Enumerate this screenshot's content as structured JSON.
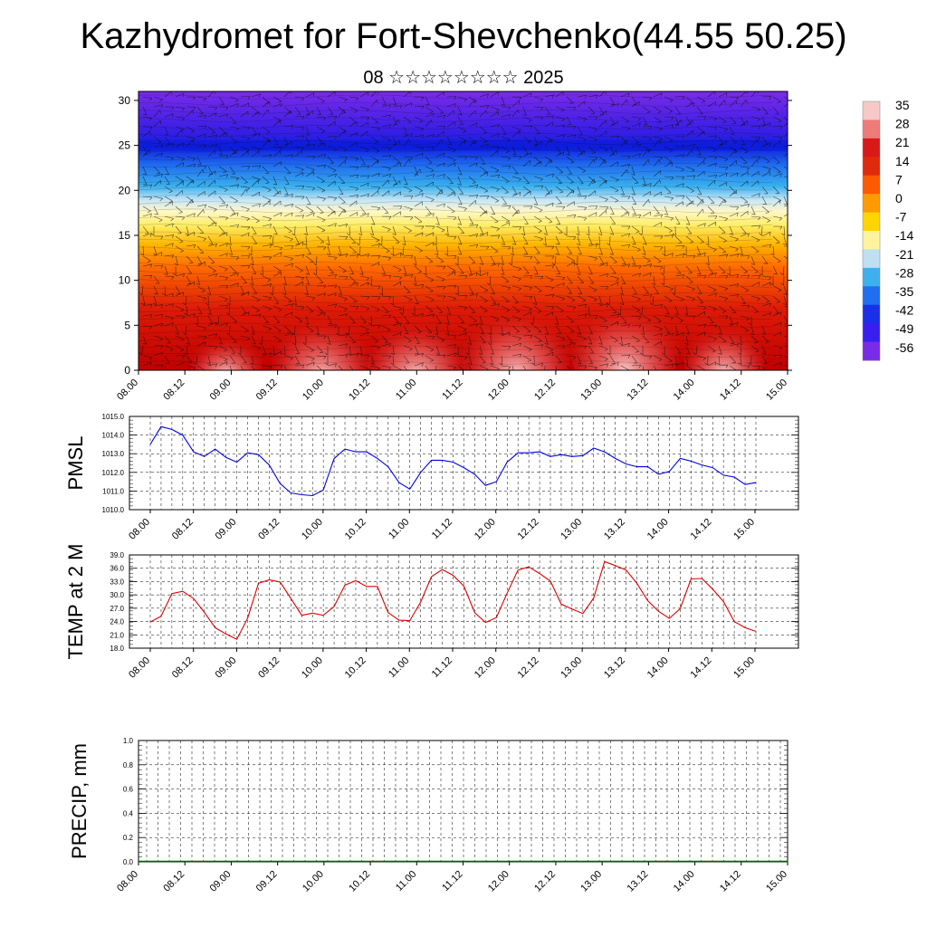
{
  "title": "Kazhydromet for Fort-Shevchenko(44.55 50.25)",
  "subtitle": "08 ☆☆☆☆☆☆☆☆ 2025",
  "time_labels": [
    "08.00",
    "08.12",
    "09.00",
    "09.12",
    "10.00",
    "10.12",
    "11.00",
    "11.12",
    "12.00",
    "12.12",
    "13.00",
    "13.12",
    "14.00",
    "14.12",
    "15.00"
  ],
  "colorbar": {
    "labels": [
      "35",
      "28",
      "21",
      "14",
      "7",
      "0",
      "-7",
      "-14",
      "-21",
      "-28",
      "-35",
      "-42",
      "-49",
      "-56"
    ],
    "colors": [
      "#f6c8c8",
      "#ee7a7a",
      "#d91818",
      "#e02a0c",
      "#ff5a00",
      "#ff9a00",
      "#ffd400",
      "#fff3a0",
      "#bfe0f0",
      "#3fb0ee",
      "#1f6ff0",
      "#1a2fe8",
      "#3a1ef0",
      "#7a2be8"
    ]
  },
  "chart_data": [
    {
      "type": "heatmap",
      "title": "",
      "xlabel": "",
      "ylabel": "",
      "ylim": [
        0,
        31
      ],
      "yticks": [
        "0",
        "5",
        "10",
        "15",
        "20",
        "25",
        "30"
      ],
      "x_ticks": [
        "08.00",
        "08.12",
        "09.00",
        "09.12",
        "10.00",
        "10.12",
        "11.00",
        "11.12",
        "12.00",
        "12.12",
        "13.00",
        "13.12",
        "14.00",
        "14.12",
        "15.00"
      ],
      "colors": {
        "low_levels": "#cc0000",
        "mid_levels": "#ffd21e",
        "high_levels": "#6a1fe6"
      },
      "overlay": "wind-barbs"
    },
    {
      "type": "line",
      "ylabel": "PMSL",
      "ylim": [
        1010.0,
        1015.0
      ],
      "yticks": [
        "1010.0",
        "1011.0",
        "1012.0",
        "1013.0",
        "1014.0",
        "1015.0"
      ],
      "x_ticks": [
        "08.00",
        "08.12",
        "09.00",
        "09.12",
        "10.00",
        "10.12",
        "11.00",
        "11.12",
        "12.00",
        "12.12",
        "13.00",
        "13.12",
        "14.00",
        "14.12",
        "15.00"
      ],
      "color": "#0000dd",
      "values": [
        1013.5,
        1014.45,
        1014.3,
        1014.0,
        1013.1,
        1012.85,
        1013.25,
        1012.8,
        1012.55,
        1013.05,
        1012.95,
        1012.4,
        1011.4,
        1010.9,
        1010.8,
        1010.75,
        1011.05,
        1012.75,
        1013.25,
        1013.1,
        1013.1,
        1012.75,
        1012.3,
        1011.45,
        1011.1,
        1012.0,
        1012.65,
        1012.65,
        1012.55,
        1012.25,
        1011.9,
        1011.3,
        1011.5,
        1012.55,
        1013.05,
        1013.05,
        1013.1,
        1012.85,
        1012.95,
        1012.85,
        1012.9,
        1013.3,
        1013.1,
        1012.75,
        1012.45,
        1012.3,
        1012.3,
        1011.9,
        1012.05,
        1012.75,
        1012.6,
        1012.4,
        1012.25,
        1011.85,
        1011.75,
        1011.35,
        1011.45
      ]
    },
    {
      "type": "line",
      "ylabel": "TEMP at 2 M",
      "ylim": [
        18.0,
        39.0
      ],
      "yticks": [
        "18.0",
        "21.0",
        "24.0",
        "27.0",
        "30.0",
        "33.0",
        "36.0",
        "39.0"
      ],
      "x_ticks": [
        "08.00",
        "08.12",
        "09.00",
        "09.12",
        "10.00",
        "10.12",
        "11.00",
        "11.12",
        "12.00",
        "12.12",
        "13.00",
        "13.12",
        "14.00",
        "14.12",
        "15.00"
      ],
      "color": "#dd0000",
      "values": [
        23.9,
        25.2,
        30.3,
        30.8,
        29.2,
        26.1,
        22.6,
        21.2,
        20.0,
        24.7,
        32.6,
        33.4,
        32.9,
        29.2,
        25.4,
        25.9,
        25.4,
        27.4,
        32.2,
        33.2,
        31.9,
        31.9,
        26.0,
        24.3,
        24.2,
        28.4,
        34.1,
        35.7,
        34.4,
        32.0,
        26.0,
        23.8,
        24.9,
        30.4,
        35.6,
        36.3,
        34.8,
        33.1,
        27.9,
        26.8,
        25.8,
        29.3,
        37.5,
        36.6,
        35.6,
        32.6,
        28.7,
        26.3,
        24.7,
        26.9,
        33.6,
        33.7,
        31.3,
        28.5,
        24.0,
        22.6,
        21.8
      ]
    },
    {
      "type": "bar",
      "ylabel": "PRECIP, mm",
      "ylim": [
        0.0,
        1.0
      ],
      "yticks": [
        "0.0",
        "0.2",
        "0.4",
        "0.6",
        "0.8",
        "1.0"
      ],
      "x_ticks": [
        "08.00",
        "08.12",
        "09.00",
        "09.12",
        "10.00",
        "10.12",
        "11.00",
        "11.12",
        "12.00",
        "12.12",
        "13.00",
        "13.12",
        "14.00",
        "14.12",
        "15.00"
      ],
      "color": "#006400",
      "values": [
        0,
        0,
        0,
        0,
        0,
        0,
        0,
        0,
        0,
        0,
        0,
        0,
        0,
        0,
        0,
        0,
        0,
        0,
        0,
        0,
        0,
        0,
        0,
        0,
        0,
        0,
        0,
        0,
        0,
        0,
        0,
        0,
        0,
        0,
        0,
        0,
        0,
        0,
        0,
        0,
        0,
        0,
        0,
        0,
        0,
        0,
        0,
        0,
        0,
        0,
        0,
        0,
        0,
        0,
        0,
        0,
        0
      ]
    }
  ]
}
